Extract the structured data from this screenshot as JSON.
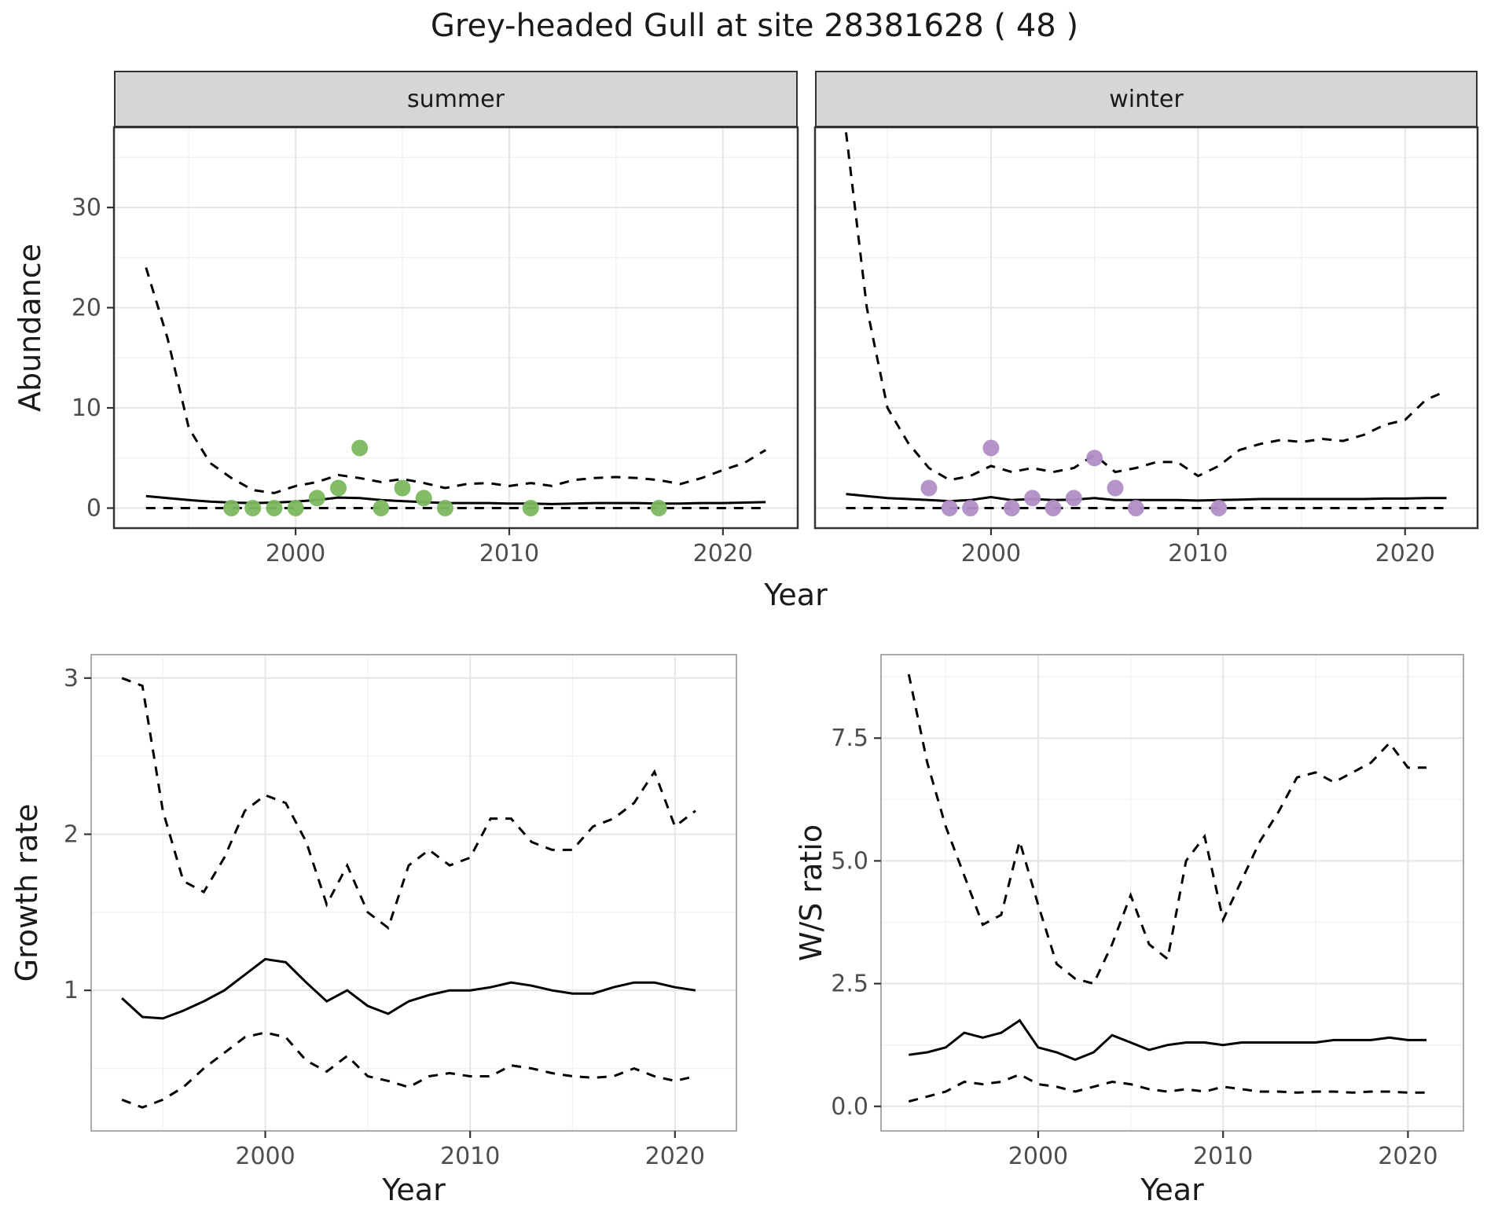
{
  "title": "Grey-headed Gull at site 28381628 ( 48 )",
  "species": "Grey-headed Gull",
  "site_id": "28381628",
  "site_count": "48",
  "colors": {
    "summer_points": "#7bb85e",
    "winter_points": "#b18fc6",
    "ci_line": "#000000",
    "median_line": "#000000",
    "strip_background": "#d6d6d6"
  },
  "chart_data": [
    {
      "id": "abundance_summer",
      "type": "line",
      "facet": "summer",
      "xlabel": "Year",
      "ylabel": "Abundance",
      "xlim": [
        1991.5,
        2023.5
      ],
      "ylim": [
        -2,
        38
      ],
      "xticks": [
        2000,
        2010,
        2020
      ],
      "xtick_labels": [
        "2000",
        "2010",
        "2020"
      ],
      "yticks": [
        0,
        10,
        20,
        30
      ],
      "ytick_labels": [
        "0",
        "10",
        "20",
        "30"
      ],
      "grid": true,
      "x": [
        1993,
        1994,
        1995,
        1996,
        1997,
        1998,
        1999,
        2000,
        2001,
        2002,
        2003,
        2004,
        2005,
        2006,
        2007,
        2008,
        2009,
        2010,
        2011,
        2012,
        2013,
        2014,
        2015,
        2016,
        2017,
        2018,
        2019,
        2020,
        2021,
        2022
      ],
      "series": [
        {
          "name": "upper_95ci",
          "linestyle": "dashed",
          "values": [
            24,
            17,
            8,
            4.5,
            3,
            1.8,
            1.5,
            2.2,
            2.6,
            3.3,
            3.0,
            2.6,
            2.9,
            2.5,
            2.0,
            2.4,
            2.5,
            2.2,
            2.5,
            2.2,
            2.8,
            3.0,
            3.1,
            3.0,
            2.8,
            2.4,
            3.0,
            3.8,
            4.5,
            5.8
          ]
        },
        {
          "name": "median",
          "linestyle": "solid",
          "values": [
            1.2,
            1.0,
            0.8,
            0.65,
            0.55,
            0.5,
            0.55,
            0.65,
            0.8,
            1.05,
            1.0,
            0.8,
            0.7,
            0.6,
            0.5,
            0.5,
            0.5,
            0.45,
            0.45,
            0.4,
            0.45,
            0.5,
            0.5,
            0.5,
            0.45,
            0.45,
            0.5,
            0.5,
            0.55,
            0.6
          ]
        },
        {
          "name": "lower_95ci",
          "linestyle": "dashed",
          "values": [
            0,
            0,
            0,
            0,
            0,
            0,
            0,
            0,
            0,
            0,
            0,
            0,
            0,
            0,
            0,
            0,
            0,
            0,
            0,
            0,
            0,
            0,
            0,
            0,
            0,
            0,
            0,
            0,
            0,
            0
          ]
        }
      ],
      "points": {
        "name": "observed_counts_summer",
        "color": "#7bb85e",
        "x": [
          1997,
          1998,
          1999,
          2000,
          2001,
          2002,
          2003,
          2004,
          2005,
          2006,
          2007,
          2011,
          2017
        ],
        "y": [
          0,
          0,
          0,
          0,
          1,
          2,
          6,
          0,
          2,
          1,
          0,
          0,
          0
        ]
      }
    },
    {
      "id": "abundance_winter",
      "type": "line",
      "facet": "winter",
      "xlabel": "Year",
      "ylabel": "Abundance",
      "xlim": [
        1991.5,
        2023.5
      ],
      "ylim": [
        -2,
        38
      ],
      "xticks": [
        2000,
        2010,
        2020
      ],
      "xtick_labels": [
        "2000",
        "2010",
        "2020"
      ],
      "yticks": [
        0,
        10,
        20,
        30
      ],
      "ytick_labels": [
        "0",
        "10",
        "20",
        "30"
      ],
      "grid": true,
      "x": [
        1993,
        1994,
        1995,
        1996,
        1997,
        1998,
        1999,
        2000,
        2001,
        2002,
        2003,
        2004,
        2005,
        2006,
        2007,
        2008,
        2009,
        2010,
        2011,
        2012,
        2013,
        2014,
        2015,
        2016,
        2017,
        2018,
        2019,
        2020,
        2021,
        2022
      ],
      "series": [
        {
          "name": "upper_95ci",
          "linestyle": "dashed",
          "values": [
            37.5,
            20,
            10,
            6.5,
            4.0,
            2.8,
            3.2,
            4.2,
            3.6,
            4.0,
            3.6,
            4.0,
            5.3,
            3.6,
            4.0,
            4.6,
            4.6,
            3.2,
            4.2,
            5.8,
            6.4,
            6.8,
            6.6,
            6.9,
            6.7,
            7.3,
            8.3,
            8.8,
            10.8,
            11.7
          ]
        },
        {
          "name": "median",
          "linestyle": "solid",
          "values": [
            1.4,
            1.2,
            1.0,
            0.9,
            0.8,
            0.7,
            0.8,
            1.1,
            0.8,
            0.9,
            0.8,
            0.85,
            1.0,
            0.8,
            0.8,
            0.8,
            0.8,
            0.75,
            0.8,
            0.85,
            0.9,
            0.9,
            0.9,
            0.9,
            0.9,
            0.9,
            0.95,
            0.95,
            1.0,
            1.0
          ]
        },
        {
          "name": "lower_95ci",
          "linestyle": "dashed",
          "values": [
            0,
            0,
            0,
            0,
            0,
            0,
            0,
            0,
            0,
            0,
            0,
            0,
            0,
            0,
            0,
            0,
            0,
            0,
            0,
            0,
            0,
            0,
            0,
            0,
            0,
            0,
            0,
            0,
            0,
            0
          ]
        }
      ],
      "points": {
        "name": "observed_counts_winter",
        "color": "#b18fc6",
        "x": [
          1997,
          1998,
          1999,
          2000,
          2001,
          2002,
          2003,
          2004,
          2005,
          2006,
          2007,
          2011
        ],
        "y": [
          2,
          0,
          0,
          6,
          0,
          1,
          0,
          1,
          5,
          2,
          0,
          0
        ]
      }
    },
    {
      "id": "growth_rate",
      "type": "line",
      "xlabel": "Year",
      "ylabel": "Growth rate",
      "xlim": [
        1991.5,
        2023
      ],
      "ylim": [
        0.1,
        3.15
      ],
      "xticks": [
        2000,
        2010,
        2020
      ],
      "xtick_labels": [
        "2000",
        "2010",
        "2020"
      ],
      "yticks": [
        1,
        2,
        3
      ],
      "ytick_labels": [
        "1",
        "2",
        "3"
      ],
      "grid": true,
      "x": [
        1993,
        1994,
        1995,
        1996,
        1997,
        1998,
        1999,
        2000,
        2001,
        2002,
        2003,
        2004,
        2005,
        2006,
        2007,
        2008,
        2009,
        2010,
        2011,
        2012,
        2013,
        2014,
        2015,
        2016,
        2017,
        2018,
        2019,
        2020,
        2021
      ],
      "series": [
        {
          "name": "upper_95ci",
          "linestyle": "dashed",
          "values": [
            3.0,
            2.95,
            2.15,
            1.7,
            1.63,
            1.85,
            2.15,
            2.25,
            2.2,
            1.95,
            1.55,
            1.8,
            1.5,
            1.4,
            1.8,
            1.9,
            1.8,
            1.85,
            2.1,
            2.1,
            1.95,
            1.9,
            1.9,
            2.05,
            2.1,
            2.2,
            2.4,
            2.05,
            2.15
          ]
        },
        {
          "name": "median",
          "linestyle": "solid",
          "values": [
            0.95,
            0.83,
            0.82,
            0.87,
            0.93,
            1.0,
            1.1,
            1.2,
            1.18,
            1.05,
            0.93,
            1.0,
            0.9,
            0.85,
            0.93,
            0.97,
            1.0,
            1.0,
            1.02,
            1.05,
            1.03,
            1.0,
            0.98,
            0.98,
            1.02,
            1.05,
            1.05,
            1.02,
            1.0
          ]
        },
        {
          "name": "lower_95ci",
          "linestyle": "dashed",
          "values": [
            0.3,
            0.25,
            0.3,
            0.38,
            0.5,
            0.6,
            0.7,
            0.73,
            0.7,
            0.55,
            0.48,
            0.58,
            0.45,
            0.42,
            0.38,
            0.45,
            0.47,
            0.45,
            0.45,
            0.52,
            0.5,
            0.47,
            0.45,
            0.44,
            0.45,
            0.5,
            0.45,
            0.42,
            0.45
          ]
        }
      ]
    },
    {
      "id": "ws_ratio",
      "type": "line",
      "xlabel": "Year",
      "ylabel": "W/S ratio",
      "xlim": [
        1991.5,
        2023
      ],
      "ylim": [
        -0.5,
        9.2
      ],
      "xticks": [
        2000,
        2010,
        2020
      ],
      "xtick_labels": [
        "2000",
        "2010",
        "2020"
      ],
      "yticks": [
        0,
        2.5,
        5,
        7.5
      ],
      "ytick_labels": [
        "0.0",
        "2.5",
        "5.0",
        "7.5"
      ],
      "grid": true,
      "x": [
        1993,
        1994,
        1995,
        1996,
        1997,
        1998,
        1999,
        2000,
        2001,
        2002,
        2003,
        2004,
        2005,
        2006,
        2007,
        2008,
        2009,
        2010,
        2011,
        2012,
        2013,
        2014,
        2015,
        2016,
        2017,
        2018,
        2019,
        2020,
        2021
      ],
      "series": [
        {
          "name": "upper_95ci",
          "linestyle": "dashed",
          "values": [
            8.8,
            7.0,
            5.7,
            4.7,
            3.7,
            3.9,
            5.4,
            4.1,
            2.9,
            2.6,
            2.5,
            3.3,
            4.3,
            3.3,
            3.0,
            5.0,
            5.5,
            3.8,
            4.6,
            5.4,
            6.0,
            6.7,
            6.8,
            6.6,
            6.8,
            7.0,
            7.4,
            6.9,
            6.9
          ]
        },
        {
          "name": "median",
          "linestyle": "solid",
          "values": [
            1.05,
            1.1,
            1.2,
            1.5,
            1.4,
            1.5,
            1.75,
            1.2,
            1.1,
            0.95,
            1.1,
            1.45,
            1.3,
            1.15,
            1.25,
            1.3,
            1.3,
            1.25,
            1.3,
            1.3,
            1.3,
            1.3,
            1.3,
            1.35,
            1.35,
            1.35,
            1.4,
            1.35,
            1.35
          ]
        },
        {
          "name": "lower_95ci",
          "linestyle": "dashed",
          "values": [
            0.1,
            0.2,
            0.3,
            0.5,
            0.45,
            0.5,
            0.65,
            0.45,
            0.4,
            0.3,
            0.4,
            0.5,
            0.45,
            0.35,
            0.3,
            0.35,
            0.3,
            0.4,
            0.35,
            0.3,
            0.3,
            0.28,
            0.3,
            0.3,
            0.28,
            0.3,
            0.3,
            0.28,
            0.28
          ]
        }
      ]
    }
  ]
}
